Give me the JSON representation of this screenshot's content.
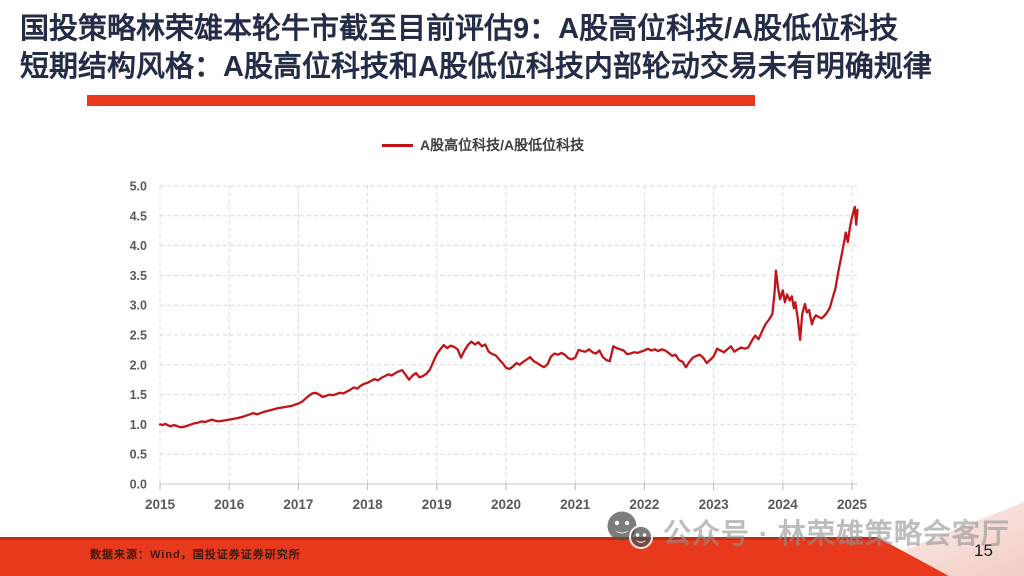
{
  "slide": {
    "title_line1": "国投策略林荣雄本轮牛市截至目前评估9：A股高位科技/A股低位科技",
    "title_line2": "短期结构风格：A股高位科技和A股低位科技内部轮动交易未有明确规律",
    "footer_source": "数据来源：Wind，国投证券证券研究所",
    "watermark_text": "公众号 · 林荣雄策略会客厅",
    "page_number": "15"
  },
  "colors": {
    "title_navy": "#242c47",
    "accent_red": "#e8391d",
    "accent_red_dark": "#bf2c12",
    "line_red": "#c21417",
    "grid_gray": "#d9d9d9",
    "axis_gray": "#c9c9c9",
    "tick_label_gray": "#595959",
    "wedge_pink_light": "#fdf0ec",
    "wedge_pink": "#f2cec6"
  },
  "chart_data": {
    "type": "line",
    "title": "",
    "xlabel": "",
    "ylabel": "",
    "grid": "dashed",
    "legend_position": "top-center",
    "x_ticks": [
      "2015",
      "2016",
      "2017",
      "2018",
      "2019",
      "2020",
      "2021",
      "2022",
      "2023",
      "2024",
      "2025"
    ],
    "y_ticks": [
      "0.0",
      "0.5",
      "1.0",
      "1.5",
      "2.0",
      "2.5",
      "3.0",
      "3.5",
      "4.0",
      "4.5",
      "5.0"
    ],
    "ylim": [
      0.0,
      5.0
    ],
    "xlim": [
      2015,
      2025.3
    ],
    "series": [
      {
        "name": "A股高位科技/A股低位科技",
        "color": "#c21417",
        "points": [
          [
            2015.0,
            1.0
          ],
          [
            2015.04,
            0.99
          ],
          [
            2015.08,
            1.01
          ],
          [
            2015.12,
            0.98
          ],
          [
            2015.16,
            0.97
          ],
          [
            2015.2,
            0.99
          ],
          [
            2015.25,
            0.97
          ],
          [
            2015.3,
            0.95
          ],
          [
            2015.35,
            0.96
          ],
          [
            2015.4,
            0.98
          ],
          [
            2015.45,
            1.0
          ],
          [
            2015.5,
            1.02
          ],
          [
            2015.55,
            1.03
          ],
          [
            2015.6,
            1.05
          ],
          [
            2015.65,
            1.04
          ],
          [
            2015.7,
            1.06
          ],
          [
            2015.75,
            1.08
          ],
          [
            2015.8,
            1.06
          ],
          [
            2015.85,
            1.05
          ],
          [
            2015.9,
            1.06
          ],
          [
            2015.95,
            1.07
          ],
          [
            2016.0,
            1.08
          ],
          [
            2016.1,
            1.1
          ],
          [
            2016.2,
            1.13
          ],
          [
            2016.3,
            1.17
          ],
          [
            2016.35,
            1.19
          ],
          [
            2016.4,
            1.17
          ],
          [
            2016.5,
            1.21
          ],
          [
            2016.6,
            1.24
          ],
          [
            2016.7,
            1.27
          ],
          [
            2016.8,
            1.29
          ],
          [
            2016.9,
            1.31
          ],
          [
            2017.0,
            1.35
          ],
          [
            2017.05,
            1.38
          ],
          [
            2017.1,
            1.43
          ],
          [
            2017.15,
            1.48
          ],
          [
            2017.2,
            1.52
          ],
          [
            2017.25,
            1.53
          ],
          [
            2017.3,
            1.5
          ],
          [
            2017.35,
            1.46
          ],
          [
            2017.4,
            1.48
          ],
          [
            2017.45,
            1.5
          ],
          [
            2017.5,
            1.49
          ],
          [
            2017.55,
            1.51
          ],
          [
            2017.6,
            1.53
          ],
          [
            2017.65,
            1.52
          ],
          [
            2017.7,
            1.55
          ],
          [
            2017.75,
            1.58
          ],
          [
            2017.8,
            1.62
          ],
          [
            2017.85,
            1.6
          ],
          [
            2017.9,
            1.65
          ],
          [
            2017.95,
            1.68
          ],
          [
            2018.0,
            1.7
          ],
          [
            2018.05,
            1.73
          ],
          [
            2018.1,
            1.76
          ],
          [
            2018.15,
            1.74
          ],
          [
            2018.2,
            1.78
          ],
          [
            2018.25,
            1.81
          ],
          [
            2018.3,
            1.84
          ],
          [
            2018.35,
            1.82
          ],
          [
            2018.4,
            1.86
          ],
          [
            2018.45,
            1.89
          ],
          [
            2018.5,
            1.91
          ],
          [
            2018.55,
            1.83
          ],
          [
            2018.6,
            1.75
          ],
          [
            2018.65,
            1.82
          ],
          [
            2018.7,
            1.86
          ],
          [
            2018.75,
            1.79
          ],
          [
            2018.8,
            1.81
          ],
          [
            2018.85,
            1.85
          ],
          [
            2018.9,
            1.92
          ],
          [
            2018.95,
            2.05
          ],
          [
            2019.0,
            2.18
          ],
          [
            2019.05,
            2.26
          ],
          [
            2019.1,
            2.33
          ],
          [
            2019.15,
            2.28
          ],
          [
            2019.2,
            2.32
          ],
          [
            2019.25,
            2.3
          ],
          [
            2019.3,
            2.26
          ],
          [
            2019.35,
            2.12
          ],
          [
            2019.4,
            2.24
          ],
          [
            2019.45,
            2.33
          ],
          [
            2019.5,
            2.39
          ],
          [
            2019.55,
            2.34
          ],
          [
            2019.6,
            2.38
          ],
          [
            2019.65,
            2.31
          ],
          [
            2019.7,
            2.34
          ],
          [
            2019.75,
            2.22
          ],
          [
            2019.8,
            2.18
          ],
          [
            2019.85,
            2.16
          ],
          [
            2019.9,
            2.09
          ],
          [
            2019.95,
            2.03
          ],
          [
            2020.0,
            1.95
          ],
          [
            2020.05,
            1.93
          ],
          [
            2020.1,
            1.97
          ],
          [
            2020.15,
            2.03
          ],
          [
            2020.2,
            2.0
          ],
          [
            2020.25,
            2.05
          ],
          [
            2020.3,
            2.09
          ],
          [
            2020.35,
            2.13
          ],
          [
            2020.4,
            2.06
          ],
          [
            2020.45,
            2.03
          ],
          [
            2020.5,
            1.99
          ],
          [
            2020.55,
            1.96
          ],
          [
            2020.6,
            2.01
          ],
          [
            2020.65,
            2.14
          ],
          [
            2020.7,
            2.19
          ],
          [
            2020.75,
            2.17
          ],
          [
            2020.8,
            2.2
          ],
          [
            2020.85,
            2.17
          ],
          [
            2020.9,
            2.11
          ],
          [
            2020.95,
            2.09
          ],
          [
            2021.0,
            2.12
          ],
          [
            2021.05,
            2.25
          ],
          [
            2021.1,
            2.23
          ],
          [
            2021.15,
            2.22
          ],
          [
            2021.2,
            2.26
          ],
          [
            2021.25,
            2.21
          ],
          [
            2021.3,
            2.19
          ],
          [
            2021.35,
            2.24
          ],
          [
            2021.4,
            2.13
          ],
          [
            2021.45,
            2.08
          ],
          [
            2021.5,
            2.06
          ],
          [
            2021.55,
            2.31
          ],
          [
            2021.6,
            2.28
          ],
          [
            2021.65,
            2.26
          ],
          [
            2021.7,
            2.24
          ],
          [
            2021.75,
            2.18
          ],
          [
            2021.8,
            2.19
          ],
          [
            2021.85,
            2.21
          ],
          [
            2021.9,
            2.2
          ],
          [
            2021.95,
            2.22
          ],
          [
            2022.0,
            2.24
          ],
          [
            2022.05,
            2.27
          ],
          [
            2022.1,
            2.24
          ],
          [
            2022.15,
            2.26
          ],
          [
            2022.2,
            2.23
          ],
          [
            2022.25,
            2.26
          ],
          [
            2022.3,
            2.24
          ],
          [
            2022.35,
            2.2
          ],
          [
            2022.4,
            2.15
          ],
          [
            2022.45,
            2.17
          ],
          [
            2022.5,
            2.08
          ],
          [
            2022.55,
            2.05
          ],
          [
            2022.6,
            1.96
          ],
          [
            2022.65,
            2.05
          ],
          [
            2022.7,
            2.12
          ],
          [
            2022.75,
            2.15
          ],
          [
            2022.8,
            2.17
          ],
          [
            2022.85,
            2.12
          ],
          [
            2022.9,
            2.03
          ],
          [
            2022.95,
            2.08
          ],
          [
            2023.0,
            2.14
          ],
          [
            2023.05,
            2.27
          ],
          [
            2023.1,
            2.24
          ],
          [
            2023.15,
            2.21
          ],
          [
            2023.2,
            2.26
          ],
          [
            2023.25,
            2.31
          ],
          [
            2023.3,
            2.22
          ],
          [
            2023.35,
            2.26
          ],
          [
            2023.4,
            2.29
          ],
          [
            2023.45,
            2.27
          ],
          [
            2023.5,
            2.29
          ],
          [
            2023.55,
            2.4
          ],
          [
            2023.6,
            2.49
          ],
          [
            2023.65,
            2.43
          ],
          [
            2023.7,
            2.56
          ],
          [
            2023.75,
            2.68
          ],
          [
            2023.8,
            2.76
          ],
          [
            2023.85,
            2.85
          ],
          [
            2023.88,
            3.2
          ],
          [
            2023.9,
            3.58
          ],
          [
            2023.93,
            3.3
          ],
          [
            2023.96,
            3.1
          ],
          [
            2024.0,
            3.25
          ],
          [
            2024.03,
            3.05
          ],
          [
            2024.06,
            3.18
          ],
          [
            2024.1,
            3.08
          ],
          [
            2024.13,
            3.15
          ],
          [
            2024.16,
            2.95
          ],
          [
            2024.18,
            3.05
          ],
          [
            2024.22,
            2.75
          ],
          [
            2024.25,
            2.42
          ],
          [
            2024.28,
            2.85
          ],
          [
            2024.32,
            3.02
          ],
          [
            2024.35,
            2.88
          ],
          [
            2024.38,
            2.92
          ],
          [
            2024.42,
            2.68
          ],
          [
            2024.45,
            2.78
          ],
          [
            2024.48,
            2.83
          ],
          [
            2024.52,
            2.8
          ],
          [
            2024.56,
            2.78
          ],
          [
            2024.6,
            2.82
          ],
          [
            2024.64,
            2.88
          ],
          [
            2024.68,
            2.96
          ],
          [
            2024.72,
            3.12
          ],
          [
            2024.76,
            3.28
          ],
          [
            2024.8,
            3.55
          ],
          [
            2024.84,
            3.78
          ],
          [
            2024.88,
            4.02
          ],
          [
            2024.91,
            4.22
          ],
          [
            2024.94,
            4.06
          ],
          [
            2024.97,
            4.3
          ],
          [
            2025.0,
            4.48
          ],
          [
            2025.04,
            4.65
          ],
          [
            2025.06,
            4.35
          ],
          [
            2025.08,
            4.6
          ]
        ]
      }
    ]
  }
}
